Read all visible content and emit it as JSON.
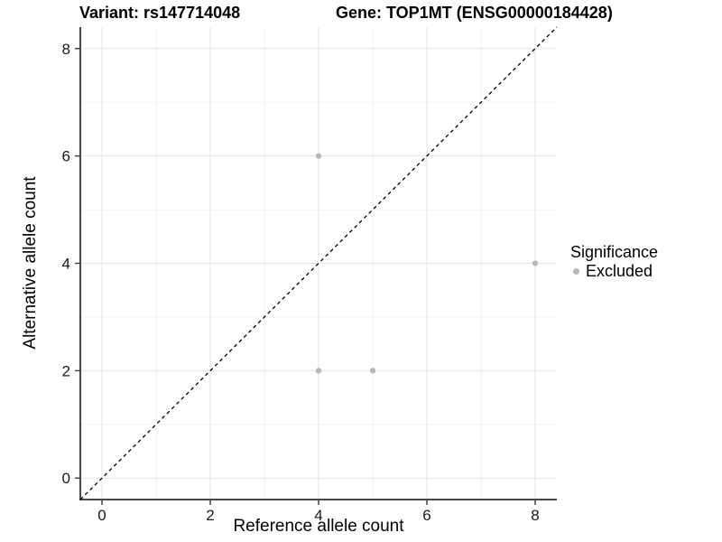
{
  "chart_data": {
    "type": "scatter",
    "titles": {
      "left": "Variant: rs147714048",
      "right": "Gene: TOP1MT (ENSG00000184428)"
    },
    "xlabel": "Reference allele count",
    "ylabel": "Alternative allele count",
    "xlim": [
      -0.4,
      8.4
    ],
    "ylim": [
      -0.4,
      8.4
    ],
    "x_ticks": [
      0,
      2,
      4,
      6,
      8
    ],
    "y_ticks": [
      0,
      2,
      4,
      6,
      8
    ],
    "x_minor": [
      1,
      3,
      5,
      7
    ],
    "y_minor": [
      1,
      3,
      5,
      7
    ],
    "grid": true,
    "identity_line": {
      "style": "dashed",
      "from": [
        -0.4,
        -0.4
      ],
      "to": [
        8.4,
        8.4
      ],
      "color": "#000000"
    },
    "series": [
      {
        "name": "Excluded",
        "color": "#b8b8b8",
        "points": [
          [
            4,
            6
          ],
          [
            4,
            2
          ],
          [
            5,
            2
          ],
          [
            8,
            4
          ]
        ]
      }
    ],
    "legend": {
      "title": "Significance",
      "position": "right",
      "items": [
        {
          "label": "Excluded",
          "color": "#b8b8b8"
        }
      ]
    },
    "style": {
      "background": "#ffffff",
      "grid_major": "#e4e4e4",
      "grid_minor": "#f2f2f2",
      "axis_line": "#474747",
      "tick_color": "#474747",
      "diag_color": "#000000"
    }
  }
}
